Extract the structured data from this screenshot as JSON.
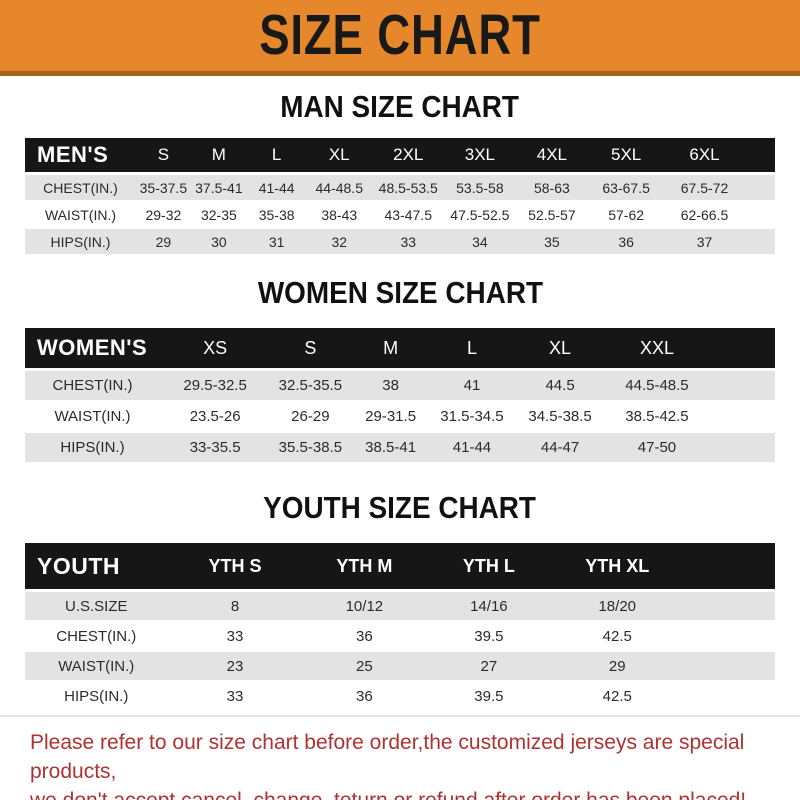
{
  "banner": {
    "title": "SIZE CHART"
  },
  "colors": {
    "accent_orange": "#E6872C",
    "banner_border": "#A4621C",
    "band_black": "#161616",
    "row_gray": "#E3E3E3",
    "note_red": "#AF3232"
  },
  "sections": {
    "men": {
      "heading": "MAN SIZE CHART"
    },
    "women": {
      "heading": "WOMEN SIZE CHART"
    },
    "youth": {
      "heading": "YOUTH SIZE CHART"
    }
  },
  "tables": {
    "men": {
      "header": [
        "MEN'S",
        "S",
        "M",
        "L",
        "XL",
        "2XL",
        "3XL",
        "4XL",
        "5XL",
        "6XL"
      ],
      "rows": [
        [
          "CHEST(IN.)",
          "35-37.5",
          "37.5-41",
          "41-44",
          "44-48.5",
          "48.5-53.5",
          "53.5-58",
          "58-63",
          "63-67.5",
          "67.5-72"
        ],
        [
          "WAIST(IN.)",
          "29-32",
          "32-35",
          "35-38",
          "38-43",
          "43-47.5",
          "47.5-52.5",
          "52.5-57",
          "57-62",
          "62-66.5"
        ],
        [
          "HIPS(IN.)",
          "29",
          "30",
          "31",
          "32",
          "33",
          "34",
          "35",
          "36",
          "37"
        ]
      ]
    },
    "women": {
      "header": [
        "WOMEN'S",
        "XS",
        "S",
        "M",
        "L",
        "XL",
        "XXL"
      ],
      "rows": [
        [
          "CHEST(IN.)",
          "29.5-32.5",
          "32.5-35.5",
          "38",
          "41",
          "44.5",
          "44.5-48.5"
        ],
        [
          "WAIST(IN.)",
          "23.5-26",
          "26-29",
          "29-31.5",
          "31.5-34.5",
          "34.5-38.5",
          "38.5-42.5"
        ],
        [
          "HIPS(IN.)",
          "33-35.5",
          "35.5-38.5",
          "38.5-41",
          "41-44",
          "44-47",
          "47-50"
        ]
      ]
    },
    "youth": {
      "header": [
        "YOUTH",
        "YTH S",
        "YTH M",
        "YTH L",
        "YTH XL"
      ],
      "rows": [
        [
          "U.S.SIZE",
          "8",
          "10/12",
          "14/16",
          "18/20"
        ],
        [
          "CHEST(IN.)",
          "33",
          "36",
          "39.5",
          "42.5"
        ],
        [
          "WAIST(IN.)",
          "23",
          "25",
          "27",
          "29"
        ],
        [
          "HIPS(IN.)",
          "33",
          "36",
          "39.5",
          "42.5"
        ]
      ]
    }
  },
  "footer": {
    "line1": "Please refer to our size chart before order,the customized jerseys are special products,",
    "line2": "we don't accept cancel, change, teturn or refund after order has been placed!"
  }
}
